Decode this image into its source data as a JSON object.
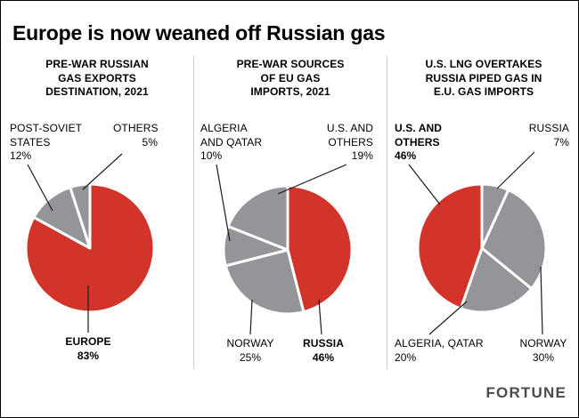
{
  "header": {
    "title": "Europe is now weaned off Russian gas"
  },
  "footer": {
    "brand": "FORTUNE"
  },
  "colors": {
    "red": "#d2342a",
    "gray": "#939598",
    "divider": "#c9cacb",
    "leader": "#1a1a1a"
  },
  "chart_data": [
    {
      "type": "pie",
      "title": "PRE-WAR RUSSIAN GAS EXPORTS DESTINATION, 2021",
      "unit": "%",
      "slices": [
        {
          "label": "EUROPE",
          "value": 83,
          "color": "red"
        },
        {
          "label": "POST-SOVIET STATES",
          "value": 12,
          "color": "gray"
        },
        {
          "label": "OTHERS",
          "value": 5,
          "color": "gray"
        }
      ]
    },
    {
      "type": "pie",
      "title": "PRE-WAR SOURCES OF EU GAS IMPORTS, 2021",
      "unit": "%",
      "slices": [
        {
          "label": "RUSSIA",
          "value": 46,
          "color": "red"
        },
        {
          "label": "NORWAY",
          "value": 25,
          "color": "gray"
        },
        {
          "label": "ALGERIA AND QATAR",
          "value": 10,
          "color": "gray"
        },
        {
          "label": "U.S. AND OTHERS",
          "value": 19,
          "color": "gray"
        }
      ]
    },
    {
      "type": "pie",
      "title": "U.S. LNG OVERTAKES RUSSIA PIPED GAS IN E.U. GAS IMPORTS",
      "unit": "%",
      "slices": [
        {
          "label": "RUSSIA",
          "value": 7,
          "color": "gray"
        },
        {
          "label": "NORWAY",
          "value": 30,
          "color": "gray"
        },
        {
          "label": "ALGERIA, QATAR",
          "value": 20,
          "color": "gray"
        },
        {
          "label": "U.S. AND OTHERS",
          "value": 46,
          "color": "red"
        }
      ]
    }
  ],
  "panels": [
    {
      "heading": "PRE-WAR RUSSIAN\nGAS EXPORTS\nDESTINATION, 2021",
      "callouts": {
        "post_soviet": "POST-SOVIET\nSTATES\n12%",
        "others": "OTHERS\n5%",
        "europe": "EUROPE\n83%"
      }
    },
    {
      "heading": "PRE-WAR SOURCES\nOF EU GAS\nIMPORTS, 2021",
      "callouts": {
        "algeria_qatar": "ALGERIA\nAND QATAR\n10%",
        "us_others": "U.S. AND\nOTHERS\n19%",
        "norway": "NORWAY\n25%",
        "russia": "RUSSIA\n46%"
      }
    },
    {
      "heading": "U.S. LNG OVERTAKES\nRUSSIA PIPED GAS IN\nE.U. GAS IMPORTS",
      "callouts": {
        "us_others": "U.S. AND\nOTHERS\n46%",
        "russia": "RUSSIA\n7%",
        "algeria_qatar": "ALGERIA, QATAR\n20%",
        "norway": "NORWAY\n30%"
      }
    }
  ]
}
